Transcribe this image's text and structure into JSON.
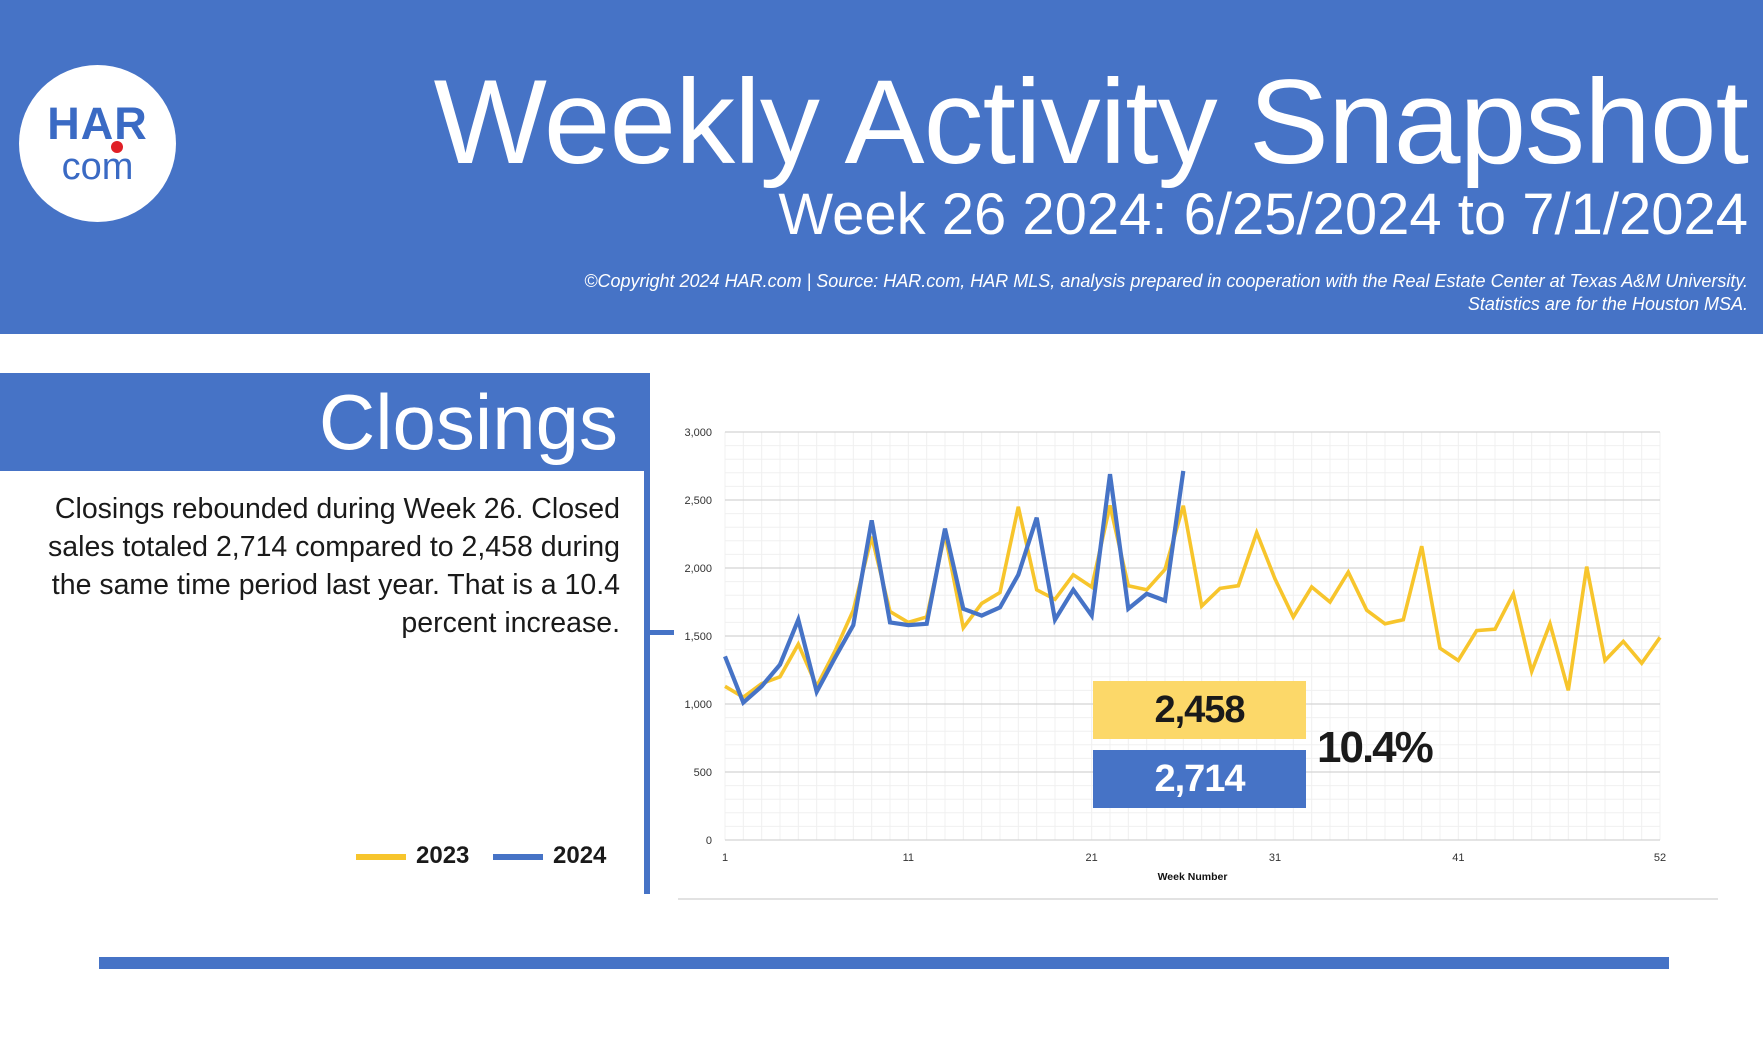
{
  "header": {
    "logo_top": "HAR",
    "logo_bottom": "com",
    "title": "Weekly Activity Snapshot",
    "subtitle": "Week 26 2024: 6/25/2024 to 7/1/2024",
    "source_line1": "©Copyright 2024 HAR.com  |  Source: HAR.com, HAR MLS, analysis prepared in cooperation with the Real Estate Center at Texas A&M University.",
    "source_line2": "Statistics are for the Houston MSA."
  },
  "section": {
    "title": "Closings",
    "description": "Closings rebounded during Week 26. Closed sales totaled 2,714 compared to 2,458 during the same time period last year. That is a 10.4 percent increase."
  },
  "legend": [
    {
      "label": "2023",
      "color": "#f7c52c"
    },
    {
      "label": "2024",
      "color": "#4673c6"
    }
  ],
  "callout": {
    "value_2023": "2,458",
    "value_2024": "2,714",
    "percent_change": "10.4%"
  },
  "colors": {
    "brand_blue": "#4673c6",
    "series_2023": "#f7c52c",
    "series_2024": "#4673c6",
    "callout_yellow": "#fcd869"
  },
  "chart_data": {
    "type": "line",
    "title": "",
    "xlabel": "Week Number",
    "ylabel": "",
    "xlim": [
      1,
      52
    ],
    "ylim": [
      0,
      3000
    ],
    "x_ticks": [
      1,
      11,
      21,
      31,
      41,
      52
    ],
    "y_ticks": [
      0,
      500,
      1000,
      1500,
      2000,
      2500,
      3000
    ],
    "y_tick_labels": [
      "0",
      "500",
      "1,000",
      "1,500",
      "2,000",
      "2,500",
      "3,000"
    ],
    "grid": true,
    "series": [
      {
        "name": "2023",
        "x": [
          1,
          2,
          3,
          4,
          5,
          6,
          7,
          8,
          9,
          10,
          11,
          12,
          13,
          14,
          15,
          16,
          17,
          18,
          19,
          20,
          21,
          22,
          23,
          24,
          25,
          26,
          27,
          28,
          29,
          30,
          31,
          32,
          33,
          34,
          35,
          36,
          37,
          38,
          39,
          40,
          41,
          42,
          43,
          44,
          45,
          46,
          47,
          48,
          49,
          50,
          51,
          52
        ],
        "values": [
          1130,
          1050,
          1150,
          1200,
          1440,
          1130,
          1390,
          1690,
          2230,
          1680,
          1600,
          1640,
          2250,
          1560,
          1740,
          1820,
          2450,
          1840,
          1770,
          1950,
          1860,
          2460,
          1870,
          1840,
          1990,
          2458,
          1720,
          1850,
          1870,
          2260,
          1920,
          1640,
          1860,
          1750,
          1970,
          1690,
          1590,
          1620,
          2160,
          1410,
          1320,
          1540,
          1550,
          1810,
          1240,
          1590,
          1100,
          2010,
          1320,
          1460,
          1300,
          1490
        ]
      },
      {
        "name": "2024",
        "x": [
          1,
          2,
          3,
          4,
          5,
          6,
          7,
          8,
          9,
          10,
          11,
          12,
          13,
          14,
          15,
          16,
          17,
          18,
          19,
          20,
          21,
          22,
          23,
          24,
          25,
          26
        ],
        "values": [
          1350,
          1010,
          1130,
          1290,
          1620,
          1090,
          1340,
          1580,
          2350,
          1600,
          1580,
          1590,
          2290,
          1700,
          1650,
          1710,
          1950,
          2370,
          1620,
          1840,
          1650,
          2690,
          1700,
          1810,
          1760,
          2714
        ]
      }
    ]
  }
}
